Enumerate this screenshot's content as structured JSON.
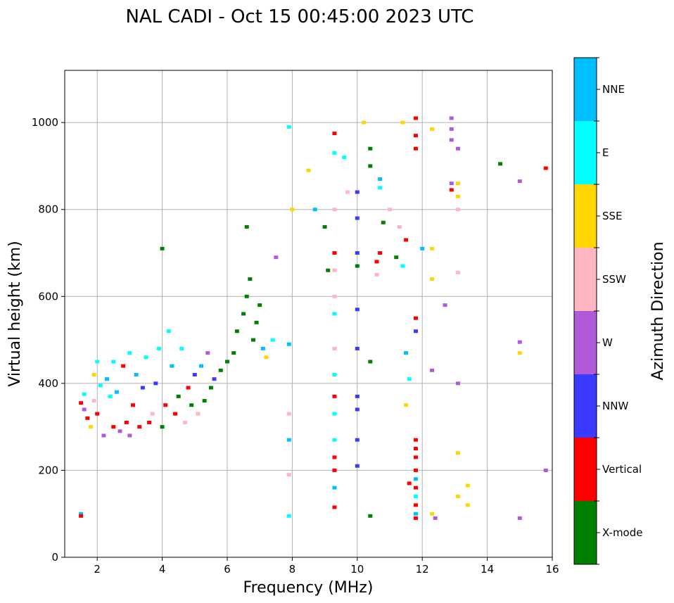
{
  "chart_data": {
    "type": "scatter",
    "title": "NAL CADI - Oct 15 00:45:00 2023 UTC",
    "xlabel": "Frequency (MHz)",
    "ylabel": "Virtual height (km)",
    "xlim": [
      1,
      16
    ],
    "ylim": [
      0,
      1120
    ],
    "xticks": [
      2,
      4,
      6,
      8,
      10,
      12,
      14,
      16
    ],
    "yticks": [
      0,
      200,
      400,
      600,
      800,
      1000
    ],
    "grid": true,
    "colorbar": {
      "title": "Azimuth Direction",
      "categories": [
        {
          "label": "X-mode",
          "color": "#008000"
        },
        {
          "label": "Vertical",
          "color": "#ff0000"
        },
        {
          "label": "NNW",
          "color": "#3b3bff"
        },
        {
          "label": "W",
          "color": "#b05ad8"
        },
        {
          "label": "SSW",
          "color": "#ffb6c1"
        },
        {
          "label": "SSE",
          "color": "#ffd700"
        },
        {
          "label": "E",
          "color": "#00ffff"
        },
        {
          "label": "NNE",
          "color": "#00bfff"
        }
      ]
    },
    "points": [
      [
        1.5,
        100,
        "NNE"
      ],
      [
        1.5,
        95,
        "Vertical"
      ],
      [
        1.5,
        355,
        "Vertical"
      ],
      [
        1.6,
        340,
        "W"
      ],
      [
        1.7,
        320,
        "Vertical"
      ],
      [
        1.6,
        375,
        "E"
      ],
      [
        1.8,
        300,
        "SSE"
      ],
      [
        1.9,
        360,
        "SSW"
      ],
      [
        2.0,
        330,
        "Vertical"
      ],
      [
        2.1,
        395,
        "E"
      ],
      [
        2.2,
        280,
        "W"
      ],
      [
        2.3,
        410,
        "NNE"
      ],
      [
        2.4,
        370,
        "E"
      ],
      [
        2.5,
        300,
        "Vertical"
      ],
      [
        2.5,
        450,
        "E"
      ],
      [
        2.6,
        380,
        "NNE"
      ],
      [
        2.7,
        290,
        "W"
      ],
      [
        2.8,
        440,
        "Vertical"
      ],
      [
        2.9,
        310,
        "Vertical"
      ],
      [
        3.0,
        470,
        "E"
      ],
      [
        3.0,
        280,
        "W"
      ],
      [
        3.1,
        350,
        "Vertical"
      ],
      [
        3.2,
        420,
        "NNE"
      ],
      [
        3.3,
        300,
        "Vertical"
      ],
      [
        3.4,
        390,
        "NNW"
      ],
      [
        3.5,
        460,
        "E"
      ],
      [
        3.6,
        310,
        "Vertical"
      ],
      [
        3.7,
        330,
        "SSW"
      ],
      [
        3.8,
        400,
        "NNW"
      ],
      [
        3.9,
        480,
        "E"
      ],
      [
        4.0,
        300,
        "X-mode"
      ],
      [
        4.1,
        350,
        "Vertical"
      ],
      [
        4.2,
        520,
        "E"
      ],
      [
        4.3,
        440,
        "NNE"
      ],
      [
        4.4,
        330,
        "Vertical"
      ],
      [
        4.5,
        370,
        "X-mode"
      ],
      [
        4.6,
        480,
        "E"
      ],
      [
        4.7,
        310,
        "SSW"
      ],
      [
        4.8,
        390,
        "Vertical"
      ],
      [
        4.9,
        350,
        "X-mode"
      ],
      [
        5.0,
        420,
        "NNW"
      ],
      [
        5.1,
        330,
        "SSW"
      ],
      [
        5.2,
        440,
        "NNE"
      ],
      [
        5.3,
        360,
        "X-mode"
      ],
      [
        5.4,
        470,
        "W"
      ],
      [
        5.5,
        390,
        "X-mode"
      ],
      [
        5.6,
        410,
        "NNW"
      ],
      [
        5.8,
        430,
        "X-mode"
      ],
      [
        6.0,
        450,
        "X-mode"
      ],
      [
        6.2,
        470,
        "X-mode"
      ],
      [
        6.3,
        520,
        "X-mode"
      ],
      [
        6.5,
        560,
        "X-mode"
      ],
      [
        6.6,
        600,
        "X-mode"
      ],
      [
        6.7,
        640,
        "X-mode"
      ],
      [
        6.8,
        500,
        "X-mode"
      ],
      [
        6.9,
        540,
        "X-mode"
      ],
      [
        7.0,
        580,
        "X-mode"
      ],
      [
        7.1,
        480,
        "NNE"
      ],
      [
        7.2,
        460,
        "SSE"
      ],
      [
        7.4,
        500,
        "E"
      ],
      [
        7.5,
        690,
        "W"
      ],
      [
        6.6,
        760,
        "X-mode"
      ],
      [
        4.0,
        710,
        "X-mode"
      ],
      [
        2.0,
        450,
        "E"
      ],
      [
        1.9,
        420,
        "SSE"
      ],
      [
        7.9,
        490,
        "NNE"
      ],
      [
        8.0,
        800,
        "SSE"
      ],
      [
        7.9,
        990,
        "E"
      ],
      [
        7.9,
        330,
        "SSW"
      ],
      [
        7.9,
        270,
        "NNE"
      ],
      [
        7.9,
        190,
        "SSW"
      ],
      [
        7.9,
        95,
        "E"
      ],
      [
        8.5,
        890,
        "SSE"
      ],
      [
        8.7,
        800,
        "NNE"
      ],
      [
        9.0,
        760,
        "X-mode"
      ],
      [
        9.1,
        660,
        "X-mode"
      ],
      [
        9.3,
        975,
        "Vertical"
      ],
      [
        9.3,
        930,
        "E"
      ],
      [
        9.3,
        800,
        "SSW"
      ],
      [
        9.3,
        700,
        "Vertical"
      ],
      [
        9.3,
        660,
        "SSW"
      ],
      [
        9.3,
        600,
        "SSW"
      ],
      [
        9.3,
        560,
        "E"
      ],
      [
        9.3,
        480,
        "SSW"
      ],
      [
        9.3,
        420,
        "E"
      ],
      [
        9.3,
        370,
        "Vertical"
      ],
      [
        9.3,
        330,
        "E"
      ],
      [
        9.3,
        270,
        "E"
      ],
      [
        9.3,
        230,
        "Vertical"
      ],
      [
        9.3,
        200,
        "Vertical"
      ],
      [
        9.3,
        160,
        "NNE"
      ],
      [
        9.3,
        115,
        "Vertical"
      ],
      [
        9.6,
        920,
        "E"
      ],
      [
        9.7,
        840,
        "SSW"
      ],
      [
        10.0,
        840,
        "NNW"
      ],
      [
        10.0,
        780,
        "NNW"
      ],
      [
        10.0,
        700,
        "NNW"
      ],
      [
        10.0,
        670,
        "X-mode"
      ],
      [
        10.0,
        570,
        "NNW"
      ],
      [
        10.0,
        480,
        "NNW"
      ],
      [
        10.0,
        370,
        "NNW"
      ],
      [
        10.0,
        340,
        "NNW"
      ],
      [
        10.0,
        270,
        "NNW"
      ],
      [
        10.0,
        210,
        "NNW"
      ],
      [
        10.2,
        1000,
        "SSE"
      ],
      [
        10.4,
        940,
        "X-mode"
      ],
      [
        10.4,
        900,
        "X-mode"
      ],
      [
        10.4,
        450,
        "X-mode"
      ],
      [
        10.4,
        95,
        "X-mode"
      ],
      [
        10.7,
        870,
        "NNE"
      ],
      [
        10.7,
        850,
        "E"
      ],
      [
        10.8,
        770,
        "X-mode"
      ],
      [
        10.7,
        700,
        "Vertical"
      ],
      [
        10.6,
        680,
        "Vertical"
      ],
      [
        10.6,
        650,
        "SSW"
      ],
      [
        11.2,
        690,
        "X-mode"
      ],
      [
        11.4,
        670,
        "E"
      ],
      [
        11.0,
        800,
        "SSW"
      ],
      [
        11.3,
        760,
        "SSW"
      ],
      [
        11.5,
        730,
        "Vertical"
      ],
      [
        11.4,
        1000,
        "SSE"
      ],
      [
        11.5,
        470,
        "NNE"
      ],
      [
        11.6,
        410,
        "E"
      ],
      [
        11.5,
        350,
        "SSE"
      ],
      [
        11.6,
        170,
        "Vertical"
      ],
      [
        11.8,
        1010,
        "Vertical"
      ],
      [
        11.8,
        970,
        "Vertical"
      ],
      [
        11.8,
        940,
        "Vertical"
      ],
      [
        11.8,
        550,
        "Vertical"
      ],
      [
        11.8,
        520,
        "NNW"
      ],
      [
        11.8,
        270,
        "Vertical"
      ],
      [
        11.8,
        250,
        "Vertical"
      ],
      [
        11.8,
        230,
        "Vertical"
      ],
      [
        11.8,
        200,
        "Vertical"
      ],
      [
        11.8,
        180,
        "NNE"
      ],
      [
        11.8,
        160,
        "Vertical"
      ],
      [
        11.8,
        140,
        "E"
      ],
      [
        11.8,
        120,
        "Vertical"
      ],
      [
        11.8,
        100,
        "NNE"
      ],
      [
        11.8,
        90,
        "Vertical"
      ],
      [
        12.0,
        710,
        "NNE"
      ],
      [
        12.3,
        985,
        "SSE"
      ],
      [
        12.3,
        710,
        "SSE"
      ],
      [
        12.3,
        640,
        "SSE"
      ],
      [
        12.3,
        430,
        "W"
      ],
      [
        12.3,
        100,
        "SSE"
      ],
      [
        12.4,
        90,
        "W"
      ],
      [
        12.7,
        580,
        "W"
      ],
      [
        12.9,
        1010,
        "W"
      ],
      [
        12.9,
        985,
        "W"
      ],
      [
        12.9,
        960,
        "W"
      ],
      [
        12.9,
        860,
        "W"
      ],
      [
        12.9,
        845,
        "Vertical"
      ],
      [
        13.1,
        940,
        "W"
      ],
      [
        13.1,
        860,
        "SSE"
      ],
      [
        13.1,
        830,
        "SSE"
      ],
      [
        13.1,
        800,
        "SSW"
      ],
      [
        13.1,
        655,
        "SSW"
      ],
      [
        13.1,
        400,
        "W"
      ],
      [
        13.1,
        240,
        "SSE"
      ],
      [
        13.1,
        140,
        "SSE"
      ],
      [
        13.4,
        165,
        "SSE"
      ],
      [
        13.4,
        120,
        "SSE"
      ],
      [
        14.4,
        905,
        "X-mode"
      ],
      [
        15.0,
        865,
        "W"
      ],
      [
        15.0,
        495,
        "W"
      ],
      [
        15.0,
        470,
        "SSE"
      ],
      [
        15.0,
        90,
        "W"
      ],
      [
        15.8,
        895,
        "Vertical"
      ],
      [
        15.8,
        200,
        "W"
      ]
    ]
  }
}
